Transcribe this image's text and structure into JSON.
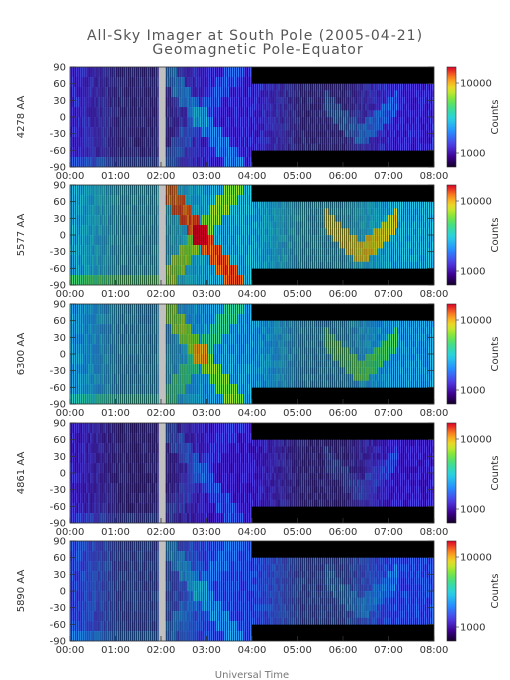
{
  "title": "All-Sky Imager at South Pole (2005-04-21)",
  "subtitle": "Geomagnetic Pole-Equator",
  "xlabel": "Universal Time",
  "colors": {
    "background_stripes": "#000000",
    "gap": "#c0c0c0"
  },
  "chart_data": {
    "type": "heatmap",
    "x_ticks": [
      "00:00",
      "01:00",
      "02:00",
      "03:00",
      "04:00",
      "05:00",
      "06:00",
      "07:00",
      "08:00"
    ],
    "xlim_hours": [
      0,
      8
    ],
    "y_ticks": [
      "90",
      "60",
      "30",
      "0",
      "-30",
      "-60",
      "-90"
    ],
    "ylim": [
      -90,
      90
    ],
    "colorbar_label": "Counts",
    "colorbar_ticks": [
      "10000",
      "1000"
    ],
    "panels": [
      {
        "label": "4278 AA",
        "baseline": 0.22,
        "intensity": 0.25
      },
      {
        "label": "5577 AA",
        "baseline": 0.45,
        "intensity": 0.85
      },
      {
        "label": "6300 AA",
        "baseline": 0.42,
        "intensity": 0.5
      },
      {
        "label": "4861 AA",
        "baseline": 0.2,
        "intensity": 0.15
      },
      {
        "label": "5890 AA",
        "baseline": 0.28,
        "intensity": 0.2
      }
    ]
  }
}
